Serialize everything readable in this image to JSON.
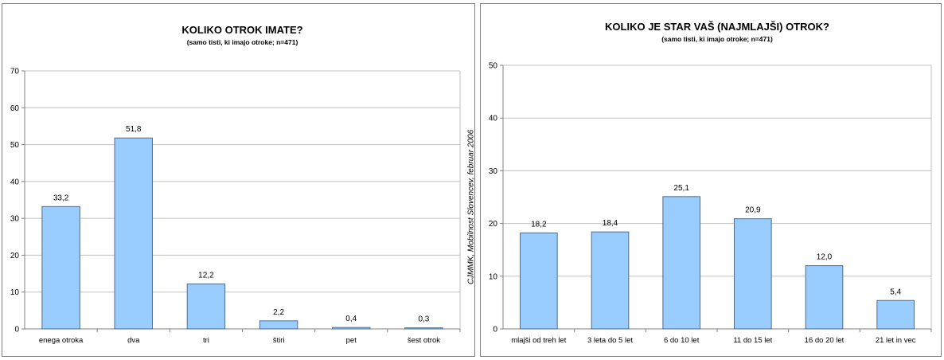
{
  "credit_text": "CJMMK, Mobilnost Slovencev, februar 2006",
  "colors": {
    "bar_fill": "#99ccff",
    "bar_stroke": "#4d6d8a",
    "grid": "#c0c0c0",
    "axis": "#808080"
  },
  "chart_data": [
    {
      "type": "bar",
      "title": "KOLIKO OTROK IMATE?",
      "subtitle": "(samo tisti, ki imajo otroke; n=471)",
      "xlabel": "",
      "ylabel": "",
      "categories": [
        "enega otroka",
        "dva",
        "tri",
        "štiri",
        "pet",
        "šest otrok"
      ],
      "values": [
        33.2,
        51.8,
        12.2,
        2.2,
        0.4,
        0.3
      ],
      "data_labels": [
        "33,2",
        "51,8",
        "12,2",
        "2,2",
        "0,4",
        "0,3"
      ],
      "ylim": [
        0,
        70
      ],
      "yticks": [
        0,
        10,
        20,
        30,
        40,
        50,
        60,
        70
      ],
      "grid": true,
      "legend": "none"
    },
    {
      "type": "bar",
      "title": "KOLIKO JE STAR VAŠ (NAJMLAJŠI) OTROK?",
      "subtitle": "(samo tisti, ki imajo otroke; n=471)",
      "xlabel": "",
      "ylabel": "",
      "categories": [
        "mlajši od treh let",
        "3 leta do 5 let",
        "6 do 10 let",
        "11 do 15 let",
        "16 do 20 let",
        "21 let in vec"
      ],
      "values": [
        18.2,
        18.4,
        25.1,
        20.9,
        12.0,
        5.4
      ],
      "data_labels": [
        "18,2",
        "18,4",
        "25,1",
        "20,9",
        "12,0",
        "5,4"
      ],
      "ylim": [
        0,
        50
      ],
      "yticks": [
        0,
        10,
        20,
        30,
        40,
        50
      ],
      "grid": true,
      "legend": "none"
    }
  ]
}
